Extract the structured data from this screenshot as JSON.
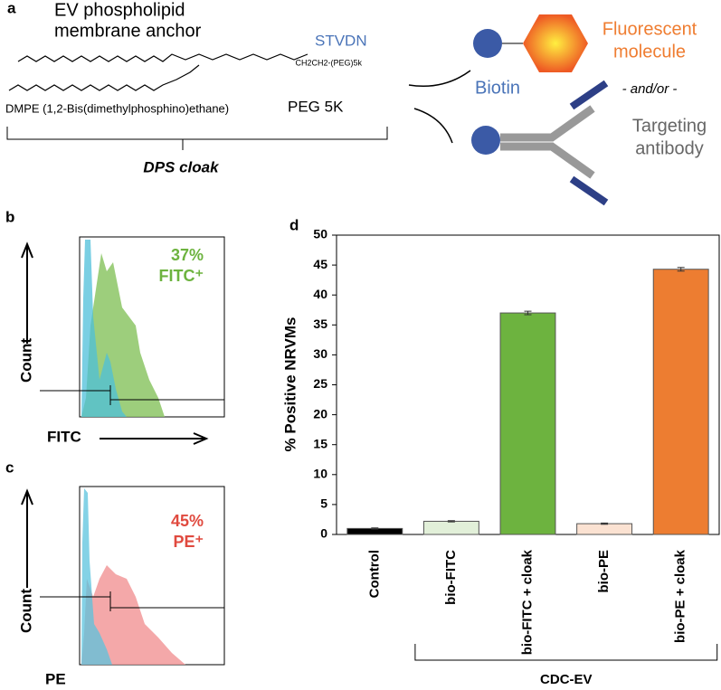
{
  "panel_a": {
    "letter": "a",
    "anchor_lines": [
      "EV phospholipid",
      "membrane anchor"
    ],
    "stvdn": "STVDN",
    "chain_label": "CH2CH2-(PEG)5k",
    "dmpe": "DMPE (1,2-Bis(dimethylphosphino)ethane)",
    "peg": "PEG 5K",
    "cloak": "DPS cloak",
    "biotin": "Biotin",
    "fluor_lines": [
      "Fluorescent",
      "molecule"
    ],
    "andor": "- and/or -",
    "target_lines": [
      "Targeting",
      "antibody"
    ]
  },
  "panel_b": {
    "letter": "b",
    "percent": "37%",
    "marker": "FITC⁺",
    "y_label": "Count",
    "x_label": "FITC"
  },
  "panel_c": {
    "letter": "c",
    "percent": "45%",
    "marker": "PE⁺",
    "y_label": "Count",
    "x_label": "PE"
  },
  "chart_data": {
    "type": "bar",
    "letter": "d",
    "y_label": "% Positive NRVMs",
    "categories": [
      "Control",
      "bio-FITC",
      "bio-FITC + cloak",
      "bio-PE",
      "bio-PE + cloak"
    ],
    "values": [
      1.0,
      2.2,
      37.0,
      1.8,
      44.3
    ],
    "errors": [
      0.1,
      0.1,
      0.3,
      0.1,
      0.3
    ],
    "colors": [
      "#000000",
      "#e2f0d9",
      "#6db33f",
      "#fbe2d2",
      "#ed7d31"
    ],
    "group_label": "CDC-EV",
    "ylim": [
      0,
      50
    ],
    "yticks": [
      0,
      5,
      10,
      15,
      20,
      25,
      30,
      35,
      40,
      45,
      50
    ]
  }
}
